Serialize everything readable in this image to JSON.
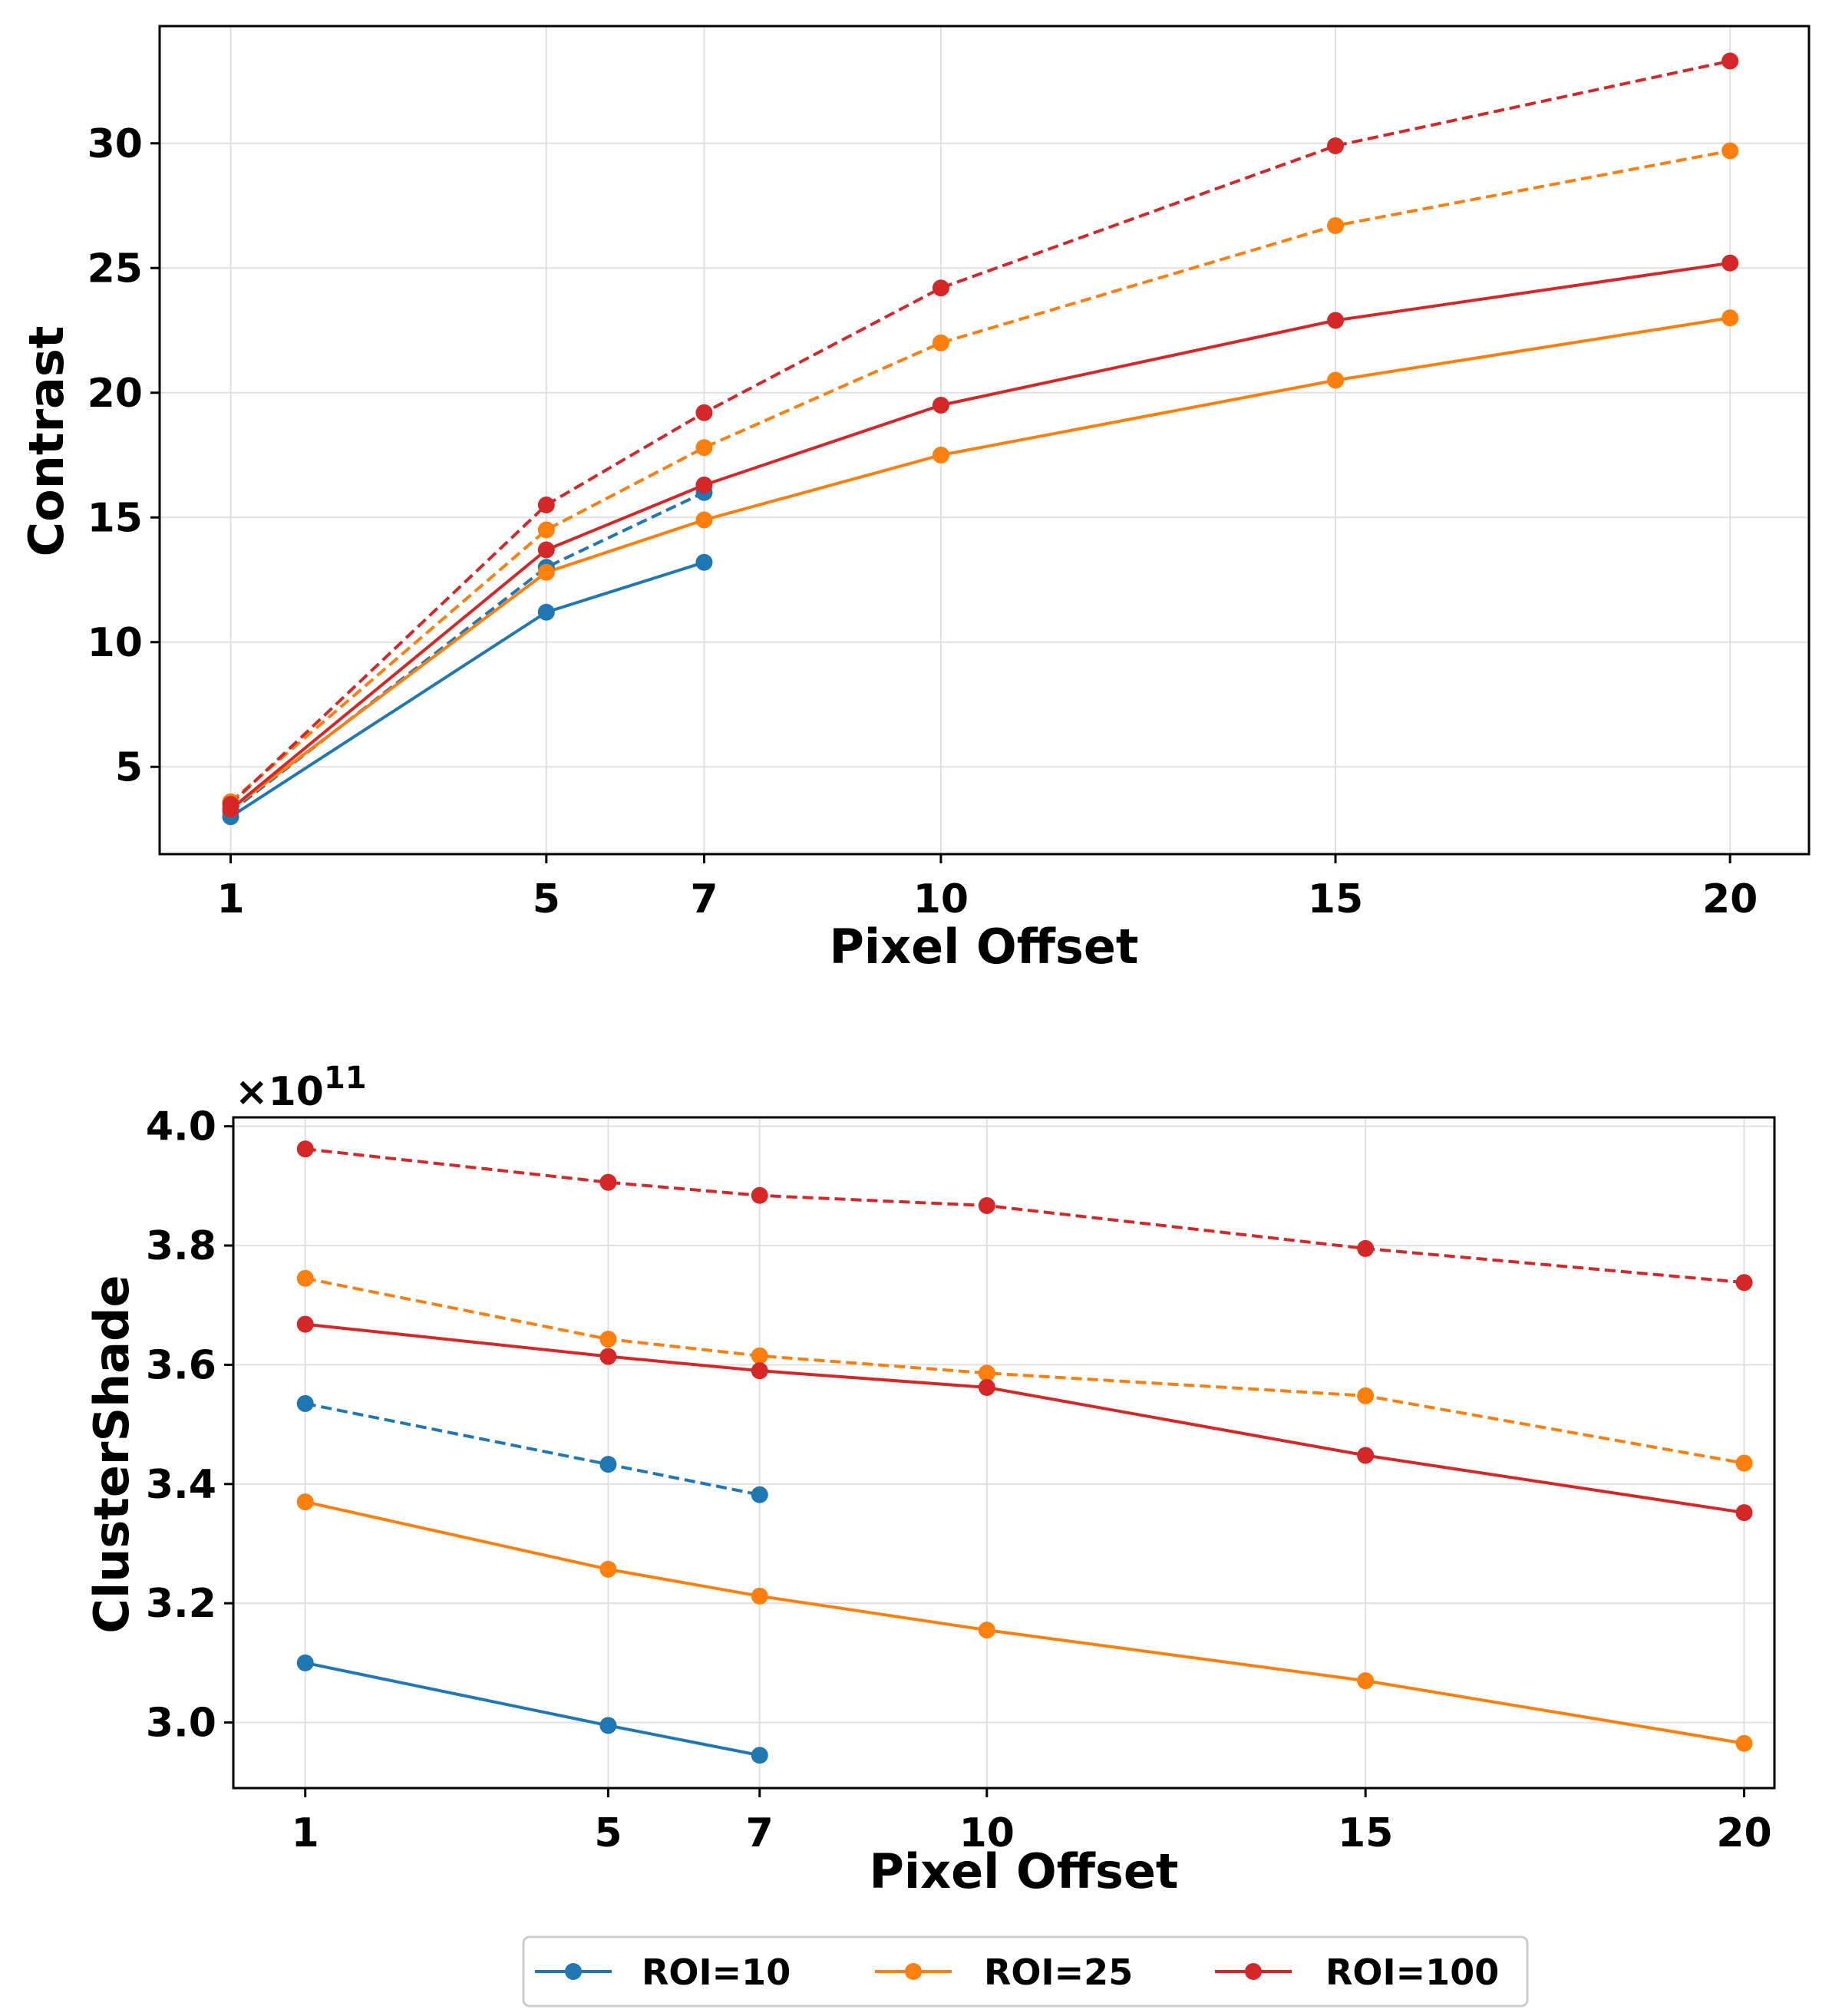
{
  "chart_data": [
    {
      "type": "line",
      "xlabel": "Pixel Offset",
      "ylabel": "Contrast",
      "x_ticks": [
        1,
        5,
        7,
        10,
        15,
        20
      ],
      "y_ticks": [
        5,
        10,
        15,
        20,
        25,
        30
      ],
      "xlim": [
        0.1,
        21.0
      ],
      "ylim": [
        1.5,
        34.7
      ],
      "grid": true,
      "series": [
        {
          "name": "ROI=10",
          "style": "solid",
          "color": "#1f77b4",
          "x": [
            1,
            5,
            7
          ],
          "values": [
            3.0,
            11.2,
            13.2
          ]
        },
        {
          "name": "ROI=10",
          "style": "dashed",
          "color": "#1f77b4",
          "x": [
            1,
            5,
            7
          ],
          "values": [
            3.2,
            13.0,
            16.0
          ]
        },
        {
          "name": "ROI=25",
          "style": "solid",
          "color": "#ff7f0e",
          "x": [
            1,
            5,
            7,
            10,
            15,
            20
          ],
          "values": [
            3.3,
            12.8,
            14.9,
            17.5,
            20.5,
            23.0
          ]
        },
        {
          "name": "ROI=25",
          "style": "dashed",
          "color": "#ff7f0e",
          "x": [
            1,
            5,
            7,
            10,
            15,
            20
          ],
          "values": [
            3.6,
            14.5,
            17.8,
            22.0,
            26.7,
            29.7
          ]
        },
        {
          "name": "ROI=100",
          "style": "solid",
          "color": "#d62728",
          "x": [
            1,
            5,
            7,
            10,
            15,
            20
          ],
          "values": [
            3.3,
            13.7,
            16.3,
            19.5,
            22.9,
            25.2
          ]
        },
        {
          "name": "ROI=100",
          "style": "dashed",
          "color": "#d62728",
          "x": [
            1,
            5,
            7,
            10,
            15,
            20
          ],
          "values": [
            3.5,
            15.5,
            19.2,
            24.2,
            29.9,
            33.3
          ]
        }
      ]
    },
    {
      "type": "line",
      "xlabel": "Pixel Offset",
      "ylabel": "ClusterShade",
      "offset_text": "×10",
      "offset_exponent": "11",
      "x_ticks": [
        1,
        5,
        7,
        10,
        15,
        20
      ],
      "y_ticks": [
        "3.0",
        "3.2",
        "3.4",
        "3.6",
        "3.8",
        "4.0"
      ],
      "xlim": [
        0.05,
        20.4
      ],
      "ylim": [
        2.89,
        4.015
      ],
      "grid": true,
      "series": [
        {
          "name": "ROI=10",
          "style": "solid",
          "color": "#1f77b4",
          "x": [
            1,
            5,
            7
          ],
          "values": [
            3.1,
            2.995,
            2.945
          ]
        },
        {
          "name": "ROI=10",
          "style": "dashed",
          "color": "#1f77b4",
          "x": [
            1,
            5,
            7
          ],
          "values": [
            3.535,
            3.433,
            3.382
          ]
        },
        {
          "name": "ROI=25",
          "style": "solid",
          "color": "#ff7f0e",
          "x": [
            1,
            5,
            7,
            10,
            15,
            20
          ],
          "values": [
            3.37,
            3.257,
            3.212,
            3.155,
            3.07,
            2.965
          ]
        },
        {
          "name": "ROI=25",
          "style": "dashed",
          "color": "#ff7f0e",
          "x": [
            1,
            5,
            7,
            10,
            15,
            20
          ],
          "values": [
            3.745,
            3.643,
            3.615,
            3.586,
            3.548,
            3.435
          ]
        },
        {
          "name": "ROI=100",
          "style": "solid",
          "color": "#d62728",
          "x": [
            1,
            5,
            7,
            10,
            15,
            20
          ],
          "values": [
            3.668,
            3.614,
            3.59,
            3.562,
            3.448,
            3.352
          ]
        },
        {
          "name": "ROI=100",
          "style": "dashed",
          "color": "#d62728",
          "x": [
            1,
            5,
            7,
            10,
            15,
            20
          ],
          "values": [
            3.962,
            3.906,
            3.884,
            3.867,
            3.795,
            3.738
          ]
        }
      ]
    }
  ],
  "legend": {
    "placement": "bottom-center",
    "entries": [
      {
        "label": "ROI=10",
        "color": "#1f77b4"
      },
      {
        "label": "ROI=25",
        "color": "#ff7f0e"
      },
      {
        "label": "ROI=100",
        "color": "#d62728"
      }
    ]
  }
}
